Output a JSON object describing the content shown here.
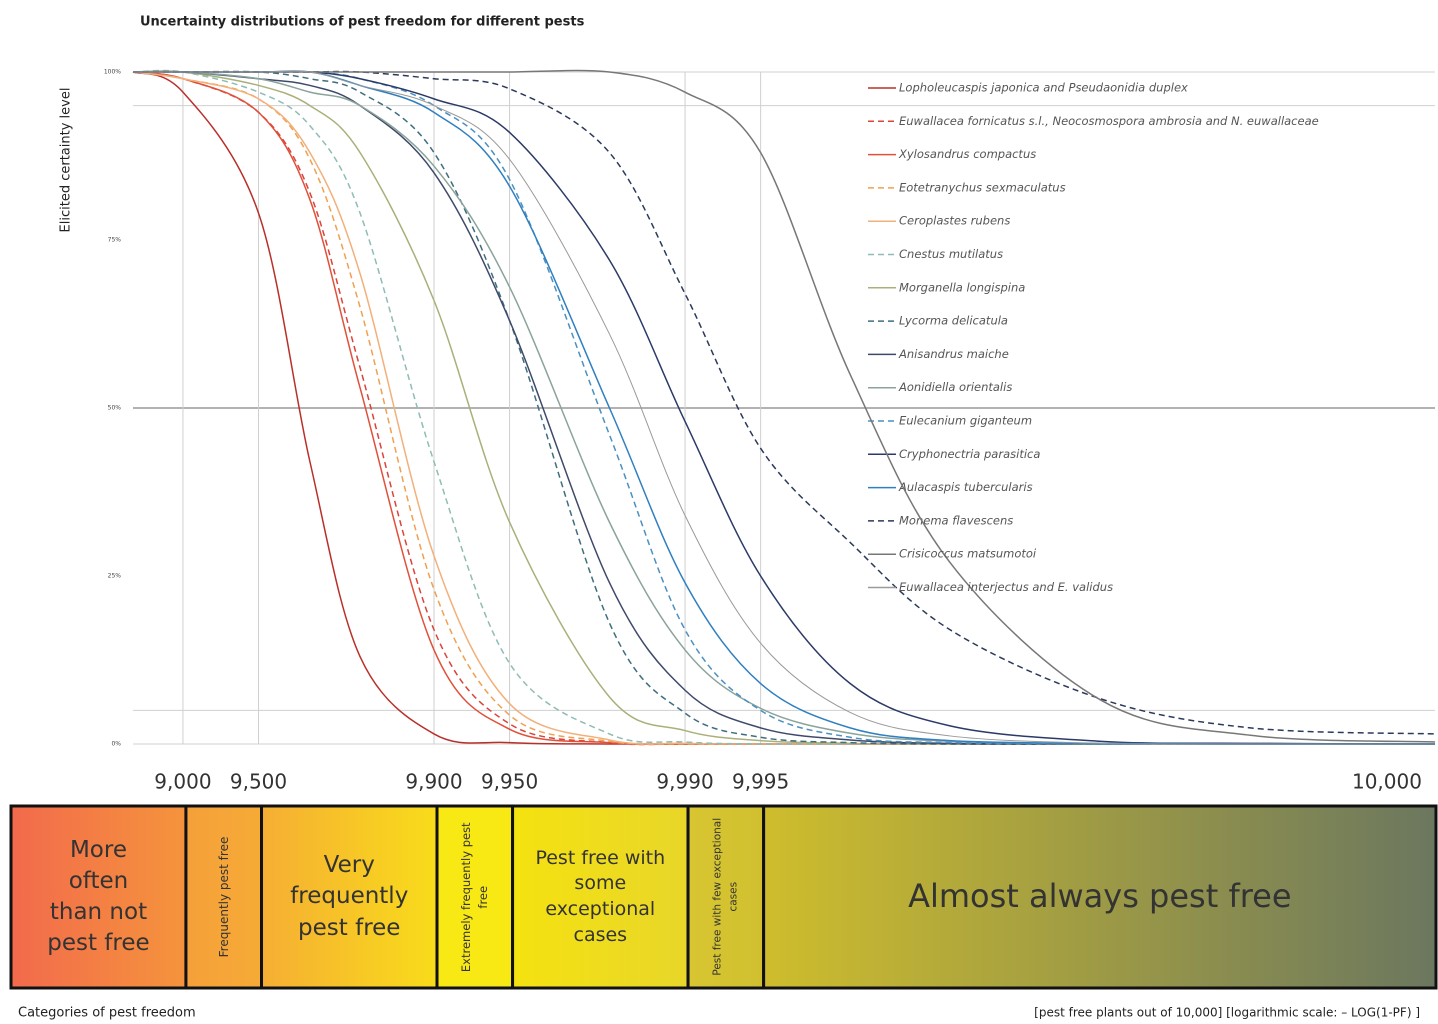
{
  "chart_data": {
    "type": "line",
    "title": "Uncertainty distributions of pest freedom for different pests",
    "y_label": "Elicited certainty level",
    "x_label": "[pest free plants out of 10,000] [logarithmic scale: – LOG(1-PF) ]",
    "category_title": "Categories of pest freedom",
    "xscale": {
      "type": "log-complement",
      "total": 10000
    },
    "xlim": [
      8419,
      9999.9897
    ],
    "xticks": [
      {
        "value": 9000,
        "label": "9,000"
      },
      {
        "value": 9500,
        "label": "9,500"
      },
      {
        "value": 9900,
        "label": "9,900"
      },
      {
        "value": 9950,
        "label": "9,950"
      },
      {
        "value": 9990,
        "label": "9,990"
      },
      {
        "value": 9995,
        "label": "9,995"
      },
      {
        "value": 9999.984,
        "label": "10,000"
      }
    ],
    "ylim": [
      0,
      100
    ],
    "yticks": [
      {
        "value": 100,
        "label": "100%"
      },
      {
        "value": 75,
        "label": "75%"
      },
      {
        "value": 50,
        "label": "50%"
      },
      {
        "value": 25,
        "label": "25%"
      },
      {
        "value": 0,
        "label": "0%"
      }
    ],
    "hlines": [
      100,
      95,
      50,
      5,
      0
    ],
    "x": [
      8419,
      9000,
      9500,
      9688,
      9803,
      9900,
      9950,
      9980,
      9990,
      9995,
      9997.8,
      9999.12,
      9999.78,
      9999.944,
      9999.9897
    ],
    "series": [
      {
        "name": "Lopholeucaspis japonica and Pseudaonidia duplex",
        "color": "#b8302a",
        "dash": false,
        "values": [
          100,
          97,
          79,
          42,
          13,
          1.5,
          0.2,
          0,
          0,
          0,
          0,
          0,
          0,
          0,
          0
        ]
      },
      {
        "name": "Euwallacea fornicatus s.l., Neocosmospora ambrosia and N. euwallaceae",
        "color": "#d9443a",
        "dash": true,
        "values": [
          100,
          99,
          94,
          82,
          56,
          17,
          3,
          0.2,
          0,
          0,
          0,
          0,
          0,
          0,
          0
        ]
      },
      {
        "name": "Xylosandrus compactus",
        "color": "#e0503a",
        "dash": false,
        "values": [
          100,
          99,
          94,
          81,
          53,
          14,
          2.2,
          0.2,
          0,
          0,
          0,
          0,
          0,
          0,
          0
        ]
      },
      {
        "name": "Eotetranychus sexmaculatus",
        "color": "#f0a050",
        "dash": true,
        "values": [
          100,
          99,
          96,
          87,
          65,
          23,
          4.3,
          0.4,
          0,
          0,
          0,
          0,
          0,
          0,
          0
        ]
      },
      {
        "name": "Ceroplastes rubens",
        "color": "#f2b07a",
        "dash": false,
        "values": [
          100,
          99,
          96,
          88,
          70,
          28,
          6,
          0.6,
          0.1,
          0,
          0,
          0,
          0,
          0,
          0
        ]
      },
      {
        "name": "Cnestus mutilatus",
        "color": "#8fbcb6",
        "dash": true,
        "values": [
          100,
          100,
          97,
          92,
          79,
          42,
          12,
          1.5,
          0.3,
          0,
          0,
          0,
          0,
          0,
          0
        ]
      },
      {
        "name": "Morganella longispina",
        "color": "#a9b07a",
        "dash": false,
        "values": [
          100,
          100,
          98,
          95,
          88,
          66,
          33,
          7,
          2,
          0.5,
          0.1,
          0,
          0,
          0,
          0
        ]
      },
      {
        "name": "Lycorma delicatula",
        "color": "#3e6e7e",
        "dash": true,
        "values": [
          100,
          100,
          100,
          99,
          97,
          88,
          63,
          18,
          4.6,
          1,
          0.2,
          0,
          0,
          0,
          0
        ]
      },
      {
        "name": "Anisandrus maiche",
        "color": "#3f4a6b",
        "dash": false,
        "values": [
          100,
          100,
          99,
          98,
          95,
          85,
          63,
          24,
          8,
          2.4,
          0.6,
          0.1,
          0,
          0,
          0
        ]
      },
      {
        "name": "Aonidiella orientalis",
        "color": "#8aa39b",
        "dash": false,
        "values": [
          100,
          100,
          99,
          97,
          95,
          86,
          68,
          33,
          14,
          5.3,
          1.6,
          0.4,
          0,
          0,
          0
        ]
      },
      {
        "name": "Eulecanium giganteum",
        "color": "#4a90c2",
        "dash": true,
        "values": [
          100,
          100,
          100,
          100,
          99,
          95,
          84,
          46,
          17,
          5,
          1,
          0.2,
          0,
          0,
          0
        ]
      },
      {
        "name": "Cryphonectria parasitica",
        "color": "#2b3a67",
        "dash": false,
        "values": [
          100,
          100,
          100,
          100,
          99,
          96,
          91,
          72,
          48,
          25,
          9,
          2.7,
          0.4,
          0.1,
          0
        ]
      },
      {
        "name": "Aulacaspis tubercularis",
        "color": "#2f7fc1",
        "dash": false,
        "values": [
          100,
          100,
          100,
          100,
          98,
          94,
          83,
          50,
          24,
          9,
          2.4,
          0.5,
          0.1,
          0,
          0
        ]
      },
      {
        "name": "Monema flavescens",
        "color": "#2b3a5a",
        "dash": true,
        "values": [
          100,
          100,
          100,
          100,
          100,
          99,
          97.5,
          88,
          67,
          44,
          30,
          17,
          6.7,
          2.4,
          1.5
        ]
      },
      {
        "name": "Crisicoccus matsumotoi",
        "color": "#777777",
        "dash": false,
        "values": [
          100,
          100,
          100,
          100,
          100,
          100,
          100,
          100,
          97,
          88,
          55,
          27,
          6.5,
          1.3,
          0.3
        ]
      },
      {
        "name": "Euwallacea interjectus and E. validus",
        "color": "#9a9a9a",
        "dash": false,
        "values": [
          100,
          100,
          100,
          100,
          98,
          95,
          87,
          61,
          34,
          15,
          4.7,
          1.2,
          0.1,
          0,
          0
        ]
      }
    ],
    "categories_of_pest_freedom": [
      {
        "label": "More often than not pest free",
        "color": [
          "#f26a4c",
          "#f5943c"
        ],
        "vertical": false
      },
      {
        "label": "Frequently pest free",
        "color": [
          "#f5a03a",
          "#f6ab36"
        ],
        "vertical": true
      },
      {
        "label": "Very frequently pest free",
        "color": [
          "#f6ae34",
          "#f8dc1a"
        ],
        "vertical": false
      },
      {
        "label": "Extremely frequently pest free",
        "color": [
          "#f8e814",
          "#f8e814"
        ],
        "vertical": true
      },
      {
        "label": "Pest free with some exceptional cases",
        "color": [
          "#f5e210",
          "#e8d62a"
        ],
        "vertical": false
      },
      {
        "label": "Pest free with few exceptional cases",
        "color": [
          "#d8c530",
          "#d0c030"
        ],
        "vertical": true
      },
      {
        "label": "Almost always pest free",
        "color": [
          "#cfbd2c",
          "#6b775f"
        ],
        "vertical": false
      }
    ]
  }
}
